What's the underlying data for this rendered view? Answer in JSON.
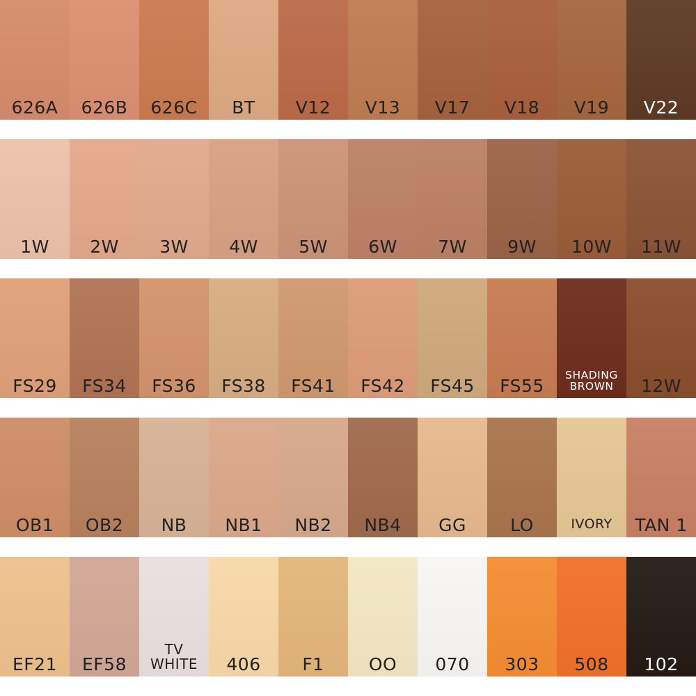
{
  "colors": {
    "background": "#ffffff",
    "label_dark": "#222222",
    "label_light": "#ffffff"
  },
  "chart_data": {
    "type": "table",
    "description": "Makeup foundation shade swatch chart: 5 rows of 10 labeled color swatches",
    "rows": [
      {
        "swatches": [
          {
            "label": "626A",
            "color": "#d68a6c"
          },
          {
            "label": "626B",
            "color": "#dc8f70"
          },
          {
            "label": "626C",
            "color": "#cb7a4f"
          },
          {
            "label": "BT",
            "color": "#dda983"
          },
          {
            "label": "V12",
            "color": "#bb6a47"
          },
          {
            "label": "V13",
            "color": "#bf7c50"
          },
          {
            "label": "V17",
            "color": "#a4623f"
          },
          {
            "label": "V18",
            "color": "#a95f3b"
          },
          {
            "label": "V19",
            "color": "#a5663e"
          },
          {
            "label": "V22",
            "color": "#5d3a25",
            "text": "light"
          }
        ]
      },
      {
        "swatches": [
          {
            "label": "1W",
            "color": "#edc1aa"
          },
          {
            "label": "2W",
            "color": "#e4a88b"
          },
          {
            "label": "3W",
            "color": "#e1a98d"
          },
          {
            "label": "4W",
            "color": "#d8a083"
          },
          {
            "label": "5W",
            "color": "#cc9378"
          },
          {
            "label": "6W",
            "color": "#bc8167"
          },
          {
            "label": "7W",
            "color": "#bb8064"
          },
          {
            "label": "9W",
            "color": "#9b6347"
          },
          {
            "label": "10W",
            "color": "#9b5c39"
          },
          {
            "label": "11W",
            "color": "#8a5436"
          }
        ]
      },
      {
        "swatches": [
          {
            "label": "FS29",
            "color": "#dfa079"
          },
          {
            "label": "FS34",
            "color": "#b07355"
          },
          {
            "label": "FS36",
            "color": "#d2936c"
          },
          {
            "label": "FS38",
            "color": "#d8ac83"
          },
          {
            "label": "FS41",
            "color": "#cf986f"
          },
          {
            "label": "FS42",
            "color": "#dc9c78"
          },
          {
            "label": "FS45",
            "color": "#cfa87d"
          },
          {
            "label": "FS55",
            "color": "#c77b51"
          },
          {
            "label": "SHADING\nBROWN",
            "color": "#6c2d1d",
            "text": "light",
            "variant": "two-sm"
          },
          {
            "label": "12W",
            "color": "#894e2c"
          }
        ]
      },
      {
        "swatches": [
          {
            "label": "OB1",
            "color": "#ce8d66"
          },
          {
            "label": "OB2",
            "color": "#b7805d"
          },
          {
            "label": "NB",
            "color": "#d7b295"
          },
          {
            "label": "NB1",
            "color": "#dba88a"
          },
          {
            "label": "NB2",
            "color": "#d5a88b"
          },
          {
            "label": "NB4",
            "color": "#9f6a4d"
          },
          {
            "label": "GG",
            "color": "#e6b88e"
          },
          {
            "label": "LO",
            "color": "#a9744e"
          },
          {
            "label": "IVORY",
            "color": "#e6c694",
            "variant": "sm"
          },
          {
            "label": "TAN 1",
            "color": "#c97f64"
          }
        ]
      },
      {
        "swatches": [
          {
            "label": "EF21",
            "color": "#edc18c"
          },
          {
            "label": "EF58",
            "color": "#d2a795"
          },
          {
            "label": "TV\nWHITE",
            "color": "#eadfdf",
            "variant": "two"
          },
          {
            "label": "406",
            "color": "#f7d8a9"
          },
          {
            "label": "F1",
            "color": "#e3b67a"
          },
          {
            "label": "OO",
            "color": "#f3e7c2"
          },
          {
            "label": "070",
            "color": "#f7f6f3"
          },
          {
            "label": "303",
            "color": "#f58c33"
          },
          {
            "label": "508",
            "color": "#f1702a"
          },
          {
            "label": "102",
            "color": "#241b14",
            "text": "light"
          }
        ]
      }
    ]
  }
}
